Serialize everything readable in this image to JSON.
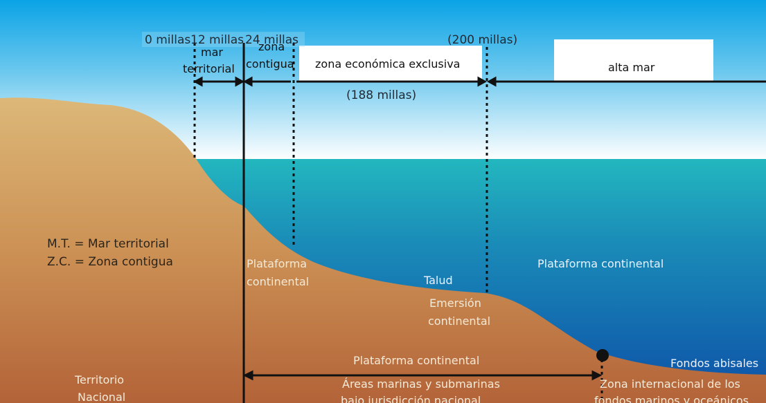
{
  "top_axis": {
    "mark_0": "0 millas",
    "mark_12": "12 millas",
    "mark_24": "24 millas",
    "mark_200": "(200 millas)",
    "span_188": "(188 millas)"
  },
  "zones": {
    "mar_territorial_1": "mar",
    "mar_territorial_2": "territorial",
    "zona_contigua_1": "zona",
    "zona_contigua_2": "contigua",
    "zee": "zona económica exclusiva",
    "alta_mar": "alta mar"
  },
  "legend": {
    "mt": "M.T. = Mar territorial",
    "zc": "Z.C. = Zona contigua"
  },
  "seabed": {
    "plataforma_left_1": "Plataforma",
    "plataforma_left_2": "continental",
    "talud": "Talud",
    "emersion_1": "Emersión",
    "emersion_2": "continental",
    "plataforma_right": "Plataforma continental",
    "fondos_abisales": "Fondos abisales",
    "territorio_1": "Territorio",
    "territorio_2": "Nacional",
    "plataforma_bottom": "Plataforma continental",
    "areas_1": "Áreas marinas y submarinas",
    "areas_2": "bajo jurisdicción nacional",
    "zona_int_1": "Zona internacional de los",
    "zona_int_2": "fondos marinos y oceánicos"
  },
  "colors": {
    "sky_top": "#0aa3e6",
    "sky_bottom": "#ffffff",
    "sea_top": "#22b5bf",
    "sea_bottom": "#0e52a8",
    "land_top": "#d9b26e",
    "land_bottom": "#b86a3e",
    "line": "#111111"
  }
}
